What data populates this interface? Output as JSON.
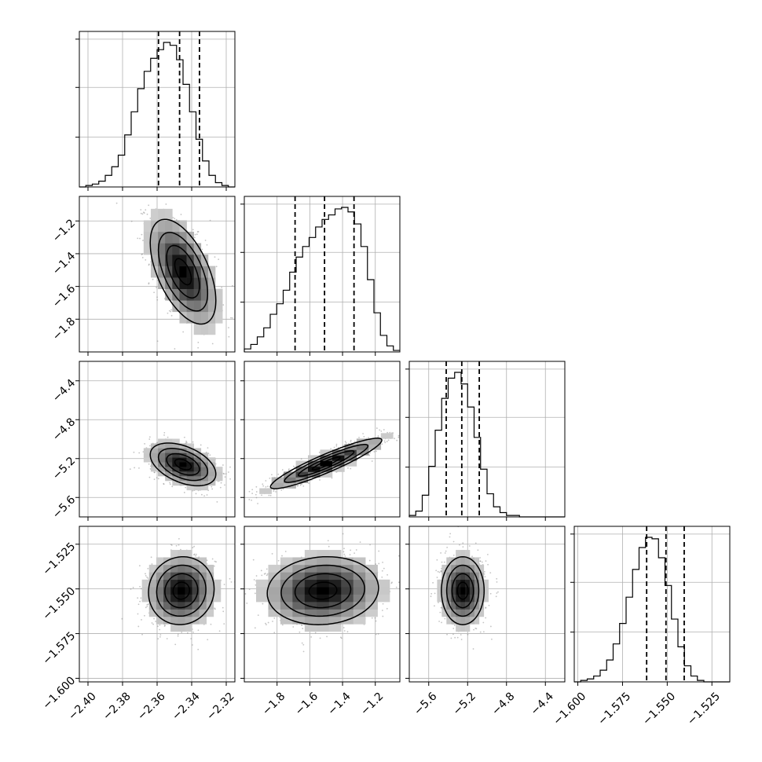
{
  "chart_data": {
    "type": "corner",
    "grid": true,
    "quantile_lines": "dashed",
    "params": [
      {
        "range": [
          -2.405,
          -2.315
        ],
        "ticks": [
          -2.4,
          -2.38,
          -2.36,
          -2.34,
          -2.32
        ],
        "tick_labels": [
          "−2.40",
          "−2.38",
          "−2.36",
          "−2.34",
          "−2.32"
        ],
        "quantiles": [
          -2.3592,
          -2.347,
          -2.3355
        ],
        "hist_bins": [
          0,
          1,
          2,
          4,
          8,
          14,
          22,
          36,
          52,
          68,
          80,
          89,
          95,
          100,
          98,
          88,
          71,
          52,
          33,
          18,
          8,
          3,
          1,
          0
        ],
        "diag_grid_frac": [
          0.33,
          0.66,
          0.98
        ]
      },
      {
        "range": [
          -2.0,
          -1.05
        ],
        "ticks": [
          -1.8,
          -1.6,
          -1.4,
          -1.2
        ],
        "tick_labels": [
          "−1.8",
          "−1.6",
          "−1.4",
          "−1.2"
        ],
        "quantiles": [
          -1.69,
          -1.51,
          -1.33
        ],
        "hist_bins": [
          2,
          5,
          10,
          16,
          25,
          32,
          41,
          53,
          63,
          70,
          76,
          83,
          88,
          91,
          95,
          96,
          93,
          85,
          70,
          48,
          26,
          11,
          4,
          1
        ],
        "diag_grid_frac": [
          0.33,
          0.66,
          0.98
        ]
      },
      {
        "range": [
          -5.8,
          -4.2
        ],
        "ticks": [
          -5.6,
          -5.2,
          -4.8,
          -4.4
        ],
        "tick_labels": [
          "−5.6",
          "−5.2",
          "−4.8",
          "−4.4"
        ],
        "quantiles": [
          -5.42,
          -5.26,
          -5.08
        ],
        "hist_bins": [
          1,
          4,
          15,
          35,
          60,
          82,
          96,
          100,
          92,
          76,
          55,
          33,
          16,
          7,
          3,
          1,
          1,
          0,
          0,
          0,
          0,
          0,
          0,
          0
        ],
        "diag_grid_frac": [
          0.33,
          0.66,
          0.98
        ]
      },
      {
        "range": [
          -1.602,
          -1.515
        ],
        "ticks": [
          -1.6,
          -1.575,
          -1.55,
          -1.525
        ],
        "tick_labels": [
          "−1.600",
          "−1.575",
          "−1.550",
          "−1.525"
        ],
        "quantiles": [
          -1.5615,
          -1.5507,
          -1.5405
        ],
        "hist_bins": [
          0,
          1,
          2,
          4,
          8,
          15,
          26,
          40,
          58,
          77,
          92,
          99,
          98,
          85,
          66,
          43,
          24,
          11,
          4,
          1,
          0,
          0,
          0,
          0
        ],
        "diag_grid_frac": [
          0.33,
          0.66,
          0.98
        ]
      }
    ],
    "pairs": [
      {
        "row": 1,
        "col": 0,
        "mean": [
          -2.345,
          -1.51
        ],
        "sd": [
          0.0095,
          0.16
        ],
        "corr": -0.55
      },
      {
        "row": 2,
        "col": 0,
        "mean": [
          -2.345,
          -5.26
        ],
        "sd": [
          0.0095,
          0.11
        ],
        "corr": -0.45
      },
      {
        "row": 2,
        "col": 1,
        "mean": [
          -1.5,
          -5.25
        ],
        "sd": [
          0.17,
          0.13
        ],
        "corr": 0.92
      },
      {
        "row": 3,
        "col": 0,
        "mean": [
          -2.346,
          -1.551
        ],
        "sd": [
          0.0095,
          0.0095
        ],
        "corr": 0.05
      },
      {
        "row": 3,
        "col": 1,
        "mean": [
          -1.52,
          -1.551
        ],
        "sd": [
          0.17,
          0.0095
        ],
        "corr": 0.08
      },
      {
        "row": 3,
        "col": 2,
        "mean": [
          -5.25,
          -1.551
        ],
        "sd": [
          0.11,
          0.0095
        ],
        "corr": 0.0
      }
    ],
    "contour_sigma_levels": [
      0.5,
      1.0,
      1.5,
      2.0
    ]
  }
}
